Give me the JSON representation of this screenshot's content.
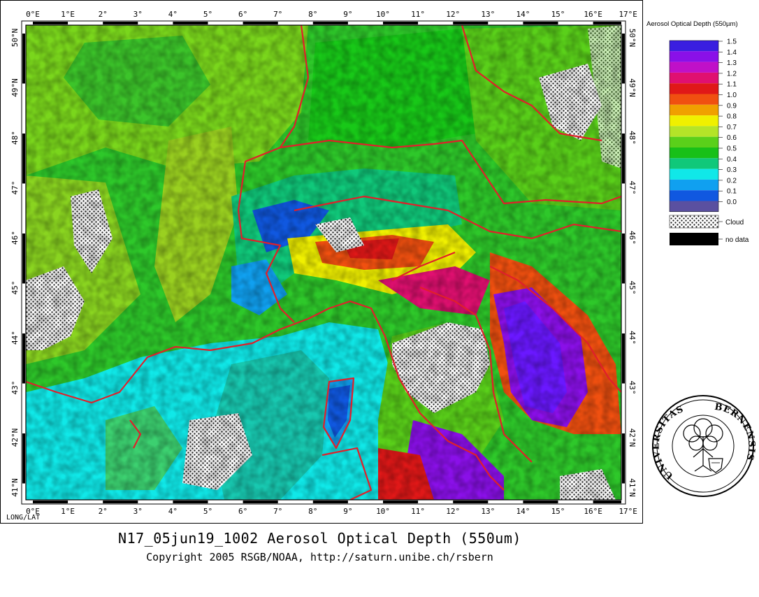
{
  "map": {
    "top_lon_labels": [
      "0°E",
      "1°E",
      "2°",
      "3°",
      "4°",
      "5°",
      "6°",
      "7°",
      "8°",
      "9°",
      "10°",
      "11°",
      "12°",
      "13°",
      "14°",
      "15°",
      "16°E",
      "17°E"
    ],
    "bottom_lon_labels": [
      "0°E",
      "1°E",
      "2°",
      "3°",
      "4°",
      "5°",
      "6°",
      "7°",
      "8°",
      "9°",
      "10°",
      "11°",
      "12°",
      "13°",
      "14°",
      "15°",
      "16°E",
      "17°E"
    ],
    "left_lat_labels": [
      "50°N",
      "49°N",
      "48°",
      "47°",
      "46°",
      "45°",
      "44°",
      "43°",
      "42°N",
      "41°N"
    ],
    "right_lat_labels": [
      "50°N",
      "49°N",
      "48°",
      "47°",
      "46°",
      "45°",
      "44°",
      "43°",
      "42°N",
      "41°N"
    ],
    "corner_label": "LONG/LAT"
  },
  "title": "N17_05jun19_1002 Aerosol Optical Depth (550um)",
  "copyright": "Copyright 2005 RSGB/NOAA, http://saturn.unibe.ch/rsbern",
  "legend": {
    "title": "Aerosol Optical Depth (550µm)",
    "items": [
      {
        "label": "1.5",
        "color": "#3a1ee0"
      },
      {
        "label": "1.4",
        "color": "#8a10e8"
      },
      {
        "label": "1.3",
        "color": "#c010c8"
      },
      {
        "label": "1.2",
        "color": "#e01070"
      },
      {
        "label": "1.1",
        "color": "#e01818"
      },
      {
        "label": "1.0",
        "color": "#f05010"
      },
      {
        "label": "0.9",
        "color": "#f0a000"
      },
      {
        "label": "0.8",
        "color": "#f0f000"
      },
      {
        "label": "0.7",
        "color": "#b4e428"
      },
      {
        "label": "0.6",
        "color": "#5ad01a"
      },
      {
        "label": "0.5",
        "color": "#18c018"
      },
      {
        "label": "0.4",
        "color": "#10c87a"
      },
      {
        "label": "0.3",
        "color": "#10e8e8"
      },
      {
        "label": "0.2",
        "color": "#10a0f0"
      },
      {
        "label": "0.1",
        "color": "#1058e0"
      },
      {
        "label": "0.0",
        "color": "#5a50a0"
      }
    ],
    "cloud_label": "Cloud",
    "nodata_label": "no data"
  },
  "seal": {
    "text_left": "UNIVERSITAS",
    "text_right": "BERNENSIS"
  }
}
